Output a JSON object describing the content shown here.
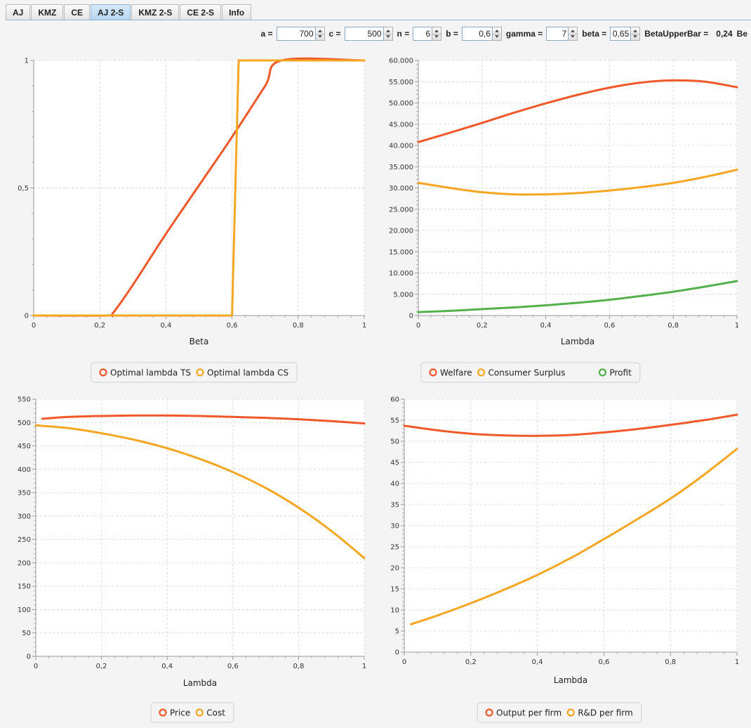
{
  "tabs": [
    "AJ",
    "KMZ",
    "CE",
    "AJ 2-S",
    "KMZ 2-S",
    "CE 2-S",
    "Info"
  ],
  "active_tab": "AJ 2-S",
  "params": [
    {
      "label": "a =",
      "value": "700",
      "box_w": 56
    },
    {
      "label": "c =",
      "value": "500",
      "box_w": 56
    },
    {
      "label": "n =",
      "value": "6",
      "box_w": 28
    },
    {
      "label": "b =",
      "value": "0,6",
      "box_w": 44
    },
    {
      "label": "gamma =",
      "value": "7",
      "box_w": 32
    },
    {
      "label": "beta =",
      "value": "0,65",
      "box_w": 30
    }
  ],
  "beta_upper_bar": {
    "label": "BetaUpperBar =",
    "value": "0,24"
  },
  "truncated_label": "Be",
  "colors": {
    "red": "#f0582a",
    "orange": "#f5a623",
    "green": "#53b04c",
    "grid": "#dcdcdc",
    "plot_bg": "#ffffff"
  },
  "chart_data": [
    {
      "type": "line",
      "xlabel": "Beta",
      "xlim": [
        0,
        1
      ],
      "ylim": [
        0,
        1
      ],
      "xticks": [
        0,
        0.2,
        0.4,
        0.6,
        0.8,
        1
      ],
      "xtick_labels": [
        "0",
        "0,2",
        "0,4",
        "0,6",
        "0,8",
        "1"
      ],
      "yticks": [
        0,
        0.5,
        1
      ],
      "ytick_labels": [
        "0",
        "0,5",
        "1"
      ],
      "series": [
        {
          "name": "Optimal lambda TS",
          "color": "red",
          "x": [
            0,
            0.22,
            0.24,
            0.3,
            0.4,
            0.5,
            0.6,
            0.7,
            0.75,
            1
          ],
          "y": [
            0,
            0,
            0.01,
            0.12,
            0.32,
            0.51,
            0.7,
            0.9,
            1,
            1
          ]
        },
        {
          "name": "Optimal lambda CS",
          "color": "orange",
          "x": [
            0,
            0.6,
            0.62,
            1
          ],
          "y": [
            0,
            0,
            1,
            1
          ]
        }
      ]
    },
    {
      "type": "line",
      "xlabel": "Lambda",
      "xlim": [
        0,
        1
      ],
      "ylim": [
        0,
        60000
      ],
      "xticks": [
        0,
        0.2,
        0.4,
        0.6,
        0.8,
        1
      ],
      "xtick_labels": [
        "0",
        "0,2",
        "0,4",
        "0,6",
        "0,8",
        "1"
      ],
      "yticks": [
        0,
        5000,
        10000,
        15000,
        20000,
        25000,
        30000,
        35000,
        40000,
        45000,
        50000,
        55000,
        60000
      ],
      "ytick_labels": [
        "0",
        "5.000",
        "10.000",
        "15.000",
        "20.000",
        "25.000",
        "30.000",
        "35.000",
        "40.000",
        "45.000",
        "50.000",
        "55.000",
        "60.000"
      ],
      "series": [
        {
          "name": "Welfare",
          "color": "red",
          "x": [
            0,
            0.1,
            0.2,
            0.3,
            0.4,
            0.5,
            0.6,
            0.7,
            0.8,
            0.9,
            1
          ],
          "y": [
            40800,
            43000,
            45300,
            47700,
            49900,
            51900,
            53600,
            54800,
            55300,
            55000,
            53700
          ]
        },
        {
          "name": "Consumer Surplus",
          "color": "orange",
          "x": [
            0,
            0.1,
            0.2,
            0.3,
            0.4,
            0.5,
            0.6,
            0.7,
            0.8,
            0.9,
            1
          ],
          "y": [
            31200,
            30000,
            29000,
            28500,
            28500,
            28800,
            29400,
            30200,
            31200,
            32600,
            34300
          ]
        },
        {
          "name": "Profit",
          "color": "green",
          "x": [
            0,
            0.1,
            0.2,
            0.3,
            0.4,
            0.5,
            0.6,
            0.7,
            0.8,
            0.9,
            1
          ],
          "y": [
            800,
            1100,
            1500,
            1900,
            2400,
            3000,
            3700,
            4600,
            5600,
            6800,
            8100
          ]
        }
      ],
      "legend_gaps": [
        0,
        40,
        0
      ]
    },
    {
      "type": "line",
      "xlabel": "Lambda",
      "xlim": [
        0,
        1
      ],
      "ylim": [
        0,
        550
      ],
      "xticks": [
        0,
        0.2,
        0.4,
        0.6,
        0.8,
        1
      ],
      "xtick_labels": [
        "0",
        "0,2",
        "0,4",
        "0,6",
        "0,8",
        "1"
      ],
      "yticks": [
        0,
        50,
        100,
        150,
        200,
        250,
        300,
        350,
        400,
        450,
        500,
        550
      ],
      "ytick_labels": [
        "0",
        "50",
        "100",
        "150",
        "200",
        "250",
        "300",
        "350",
        "400",
        "450",
        "500",
        "550"
      ],
      "series": [
        {
          "name": "Price",
          "color": "red",
          "x": [
            0.02,
            0.1,
            0.2,
            0.3,
            0.4,
            0.5,
            0.6,
            0.7,
            0.8,
            0.9,
            1
          ],
          "y": [
            508,
            512,
            514,
            515,
            515,
            514,
            512,
            510,
            507,
            503,
            498
          ]
        },
        {
          "name": "Cost",
          "color": "orange",
          "x": [
            0,
            0.1,
            0.2,
            0.3,
            0.4,
            0.5,
            0.6,
            0.7,
            0.8,
            0.9,
            1
          ],
          "y": [
            494,
            488,
            477,
            463,
            445,
            422,
            394,
            360,
            318,
            268,
            210
          ]
        }
      ]
    },
    {
      "type": "line",
      "xlabel": "Lambda",
      "xlim": [
        0,
        1
      ],
      "ylim": [
        0,
        60
      ],
      "xticks": [
        0,
        0.2,
        0.4,
        0.6,
        0.8,
        1
      ],
      "xtick_labels": [
        "0",
        "0,2",
        "0,4",
        "0,6",
        "0,8",
        "1"
      ],
      "yticks": [
        0,
        5,
        10,
        15,
        20,
        25,
        30,
        35,
        40,
        45,
        50,
        55,
        60
      ],
      "ytick_labels": [
        "0",
        "5",
        "10",
        "15",
        "20",
        "25",
        "30",
        "35",
        "40",
        "45",
        "50",
        "55",
        "60"
      ],
      "series": [
        {
          "name": "Output per firm",
          "color": "red",
          "x": [
            0,
            0.1,
            0.2,
            0.3,
            0.4,
            0.5,
            0.6,
            0.7,
            0.8,
            0.9,
            1
          ],
          "y": [
            53.7,
            52.6,
            51.8,
            51.4,
            51.3,
            51.5,
            52.1,
            52.9,
            53.9,
            55.0,
            56.3
          ]
        },
        {
          "name": "R&D per firm",
          "color": "orange",
          "x": [
            0.02,
            0.1,
            0.2,
            0.3,
            0.4,
            0.5,
            0.6,
            0.7,
            0.8,
            0.9,
            1
          ],
          "y": [
            6.6,
            8.7,
            11.6,
            14.8,
            18.3,
            22.3,
            26.8,
            31.5,
            36.4,
            42.0,
            48.2
          ]
        }
      ]
    }
  ]
}
